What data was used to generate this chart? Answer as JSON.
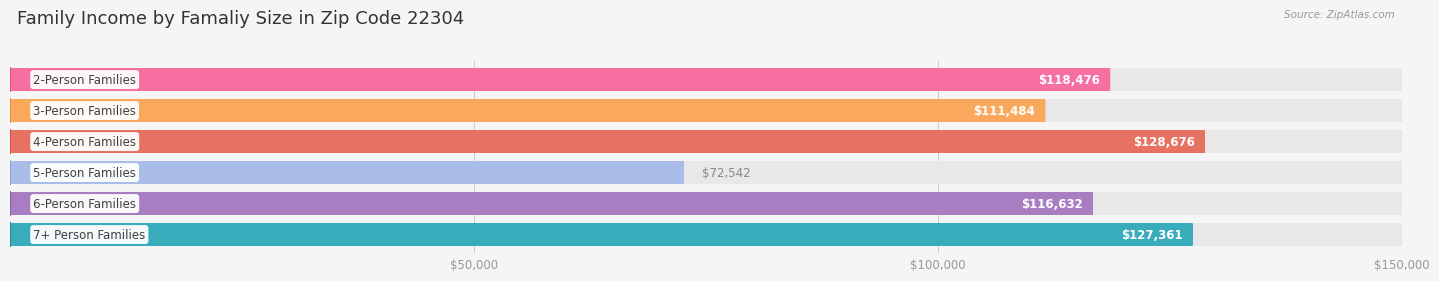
{
  "title": "Family Income by Famaliy Size in Zip Code 22304",
  "source": "Source: ZipAtlas.com",
  "categories": [
    "2-Person Families",
    "3-Person Families",
    "4-Person Families",
    "5-Person Families",
    "6-Person Families",
    "7+ Person Families"
  ],
  "values": [
    118476,
    111484,
    128676,
    72542,
    116632,
    127361
  ],
  "bar_colors": [
    "#F76FA0",
    "#F9A85C",
    "#E87262",
    "#AABDE8",
    "#A87DC2",
    "#38ACBA"
  ],
  "dot_colors": [
    "#E8517F",
    "#E8903A",
    "#D45545",
    "#8BA3D8",
    "#8B5FA8",
    "#1E8FA0"
  ],
  "value_labels": [
    "$118,476",
    "$111,484",
    "$128,676",
    "$72,542",
    "$116,632",
    "$127,361"
  ],
  "value_inside": [
    true,
    true,
    true,
    false,
    true,
    true
  ],
  "xlim": [
    0,
    150000
  ],
  "xticks": [
    50000,
    100000,
    150000
  ],
  "xticklabels": [
    "$50,000",
    "$100,000",
    "$150,000"
  ],
  "background_color": "#F5F5F5",
  "bar_bg_color": "#E8E8E8",
  "title_fontsize": 13,
  "label_fontsize": 8.5,
  "value_fontsize": 8.5
}
